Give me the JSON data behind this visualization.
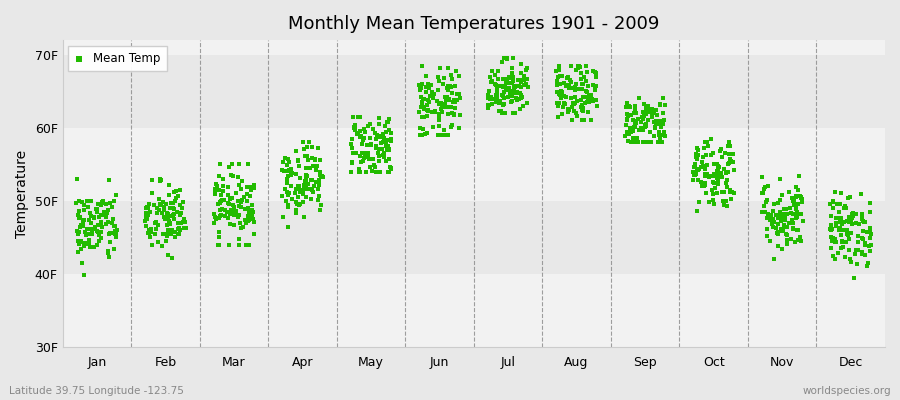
{
  "title": "Monthly Mean Temperatures 1901 - 2009",
  "ylabel": "Temperature",
  "subtitle": "Latitude 39.75 Longitude -123.75",
  "watermark": "worldspecies.org",
  "ylim": [
    30,
    72
  ],
  "yticks": [
    30,
    40,
    50,
    60,
    70
  ],
  "ytick_labels": [
    "30F",
    "40F",
    "50F",
    "60F",
    "70F"
  ],
  "months": [
    "Jan",
    "Feb",
    "Mar",
    "Apr",
    "May",
    "Jun",
    "Jul",
    "Aug",
    "Sep",
    "Oct",
    "Nov",
    "Dec"
  ],
  "dot_color": "#22bb00",
  "dot_size": 9,
  "background_color": "#e8e8e8",
  "plot_bg_color": "#f2f2f2",
  "legend_label": "Mean Temp",
  "month_means": [
    46.5,
    47.5,
    49.5,
    53.0,
    57.5,
    63.0,
    65.5,
    64.5,
    60.5,
    54.0,
    48.0,
    46.0
  ],
  "month_spreads": [
    2.5,
    2.5,
    2.5,
    2.5,
    2.5,
    2.5,
    2.0,
    2.0,
    2.0,
    2.5,
    2.5,
    2.5
  ],
  "month_mins": [
    39.0,
    41.0,
    44.0,
    46.0,
    54.0,
    59.0,
    62.0,
    61.0,
    58.0,
    48.0,
    42.0,
    39.0
  ],
  "month_maxs": [
    53.0,
    54.0,
    55.0,
    58.0,
    61.5,
    68.5,
    69.5,
    68.5,
    67.5,
    62.5,
    55.5,
    52.0
  ],
  "n_years": 109
}
